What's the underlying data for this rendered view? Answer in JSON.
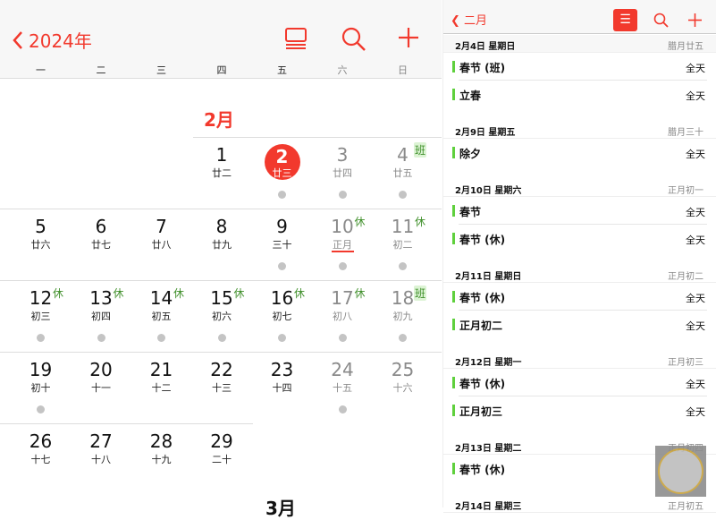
{
  "month_view": {
    "back_label": "2024年",
    "icons": [
      "calendar-list-icon",
      "search-icon",
      "plus-icon"
    ],
    "weekdays": [
      "一",
      "二",
      "三",
      "四",
      "五",
      "六",
      "日"
    ],
    "month_label": "2月",
    "next_month_label": "3月",
    "today": 2,
    "weeks": [
      [
        null,
        null,
        null,
        {
          "d": "1",
          "l": "廿二"
        },
        {
          "d": "2",
          "l": "廿三",
          "dot": true
        },
        {
          "d": "3",
          "l": "廿四",
          "dot": true
        },
        {
          "d": "4",
          "l": "廿五",
          "dot": true,
          "badge": "班"
        }
      ],
      [
        {
          "d": "5",
          "l": "廿六"
        },
        {
          "d": "6",
          "l": "廿七"
        },
        {
          "d": "7",
          "l": "廿八"
        },
        {
          "d": "8",
          "l": "廿九"
        },
        {
          "d": "9",
          "l": "三十",
          "dot": true
        },
        {
          "d": "10",
          "l": "正月",
          "dot": true,
          "badge": "休",
          "underline": true
        },
        {
          "d": "11",
          "l": "初二",
          "dot": true,
          "badge": "休"
        }
      ],
      [
        {
          "d": "12",
          "l": "初三",
          "dot": true,
          "badge": "休"
        },
        {
          "d": "13",
          "l": "初四",
          "dot": true,
          "badge": "休"
        },
        {
          "d": "14",
          "l": "初五",
          "dot": true,
          "badge": "休"
        },
        {
          "d": "15",
          "l": "初六",
          "dot": true,
          "badge": "休"
        },
        {
          "d": "16",
          "l": "初七",
          "dot": true,
          "badge": "休"
        },
        {
          "d": "17",
          "l": "初八",
          "dot": true,
          "badge": "休"
        },
        {
          "d": "18",
          "l": "初九",
          "dot": true,
          "badge": "班"
        }
      ],
      [
        {
          "d": "19",
          "l": "初十",
          "dot": true
        },
        {
          "d": "20",
          "l": "十一"
        },
        {
          "d": "21",
          "l": "十二"
        },
        {
          "d": "22",
          "l": "十三"
        },
        {
          "d": "23",
          "l": "十四"
        },
        {
          "d": "24",
          "l": "十五",
          "dot": true
        },
        {
          "d": "25",
          "l": "十六"
        }
      ],
      [
        {
          "d": "26",
          "l": "十七"
        },
        {
          "d": "27",
          "l": "十八"
        },
        {
          "d": "28",
          "l": "十九"
        },
        {
          "d": "29",
          "l": "二十"
        },
        null,
        null,
        null
      ]
    ]
  },
  "list_view": {
    "back_label": "二月",
    "accent": "#f2392d",
    "event_color": "#5fd03d",
    "sections": [
      {
        "date": "2月4日 星期日",
        "lunar": "腊月廿五",
        "events": [
          {
            "title": "春节 (班)",
            "time": "全天"
          },
          {
            "title": "立春",
            "time": "全天"
          }
        ]
      },
      {
        "date": "2月9日 星期五",
        "lunar": "腊月三十",
        "events": [
          {
            "title": "除夕",
            "time": "全天"
          }
        ]
      },
      {
        "date": "2月10日 星期六",
        "lunar": "正月初一",
        "events": [
          {
            "title": "春节",
            "time": "全天"
          },
          {
            "title": "春节 (休)",
            "time": "全天"
          }
        ]
      },
      {
        "date": "2月11日 星期日",
        "lunar": "正月初二",
        "events": [
          {
            "title": "春节 (休)",
            "time": "全天"
          },
          {
            "title": "正月初二",
            "time": "全天"
          }
        ]
      },
      {
        "date": "2月12日 星期一",
        "lunar": "正月初三",
        "events": [
          {
            "title": "春节 (休)",
            "time": "全天"
          },
          {
            "title": "正月初三",
            "time": "全天"
          }
        ]
      },
      {
        "date": "2月13日 星期二",
        "lunar": "正月初四",
        "events": [
          {
            "title": "春节 (休)",
            "time": ""
          }
        ]
      },
      {
        "date": "2月14日 星期三",
        "lunar": "正月初五",
        "events": []
      }
    ]
  }
}
